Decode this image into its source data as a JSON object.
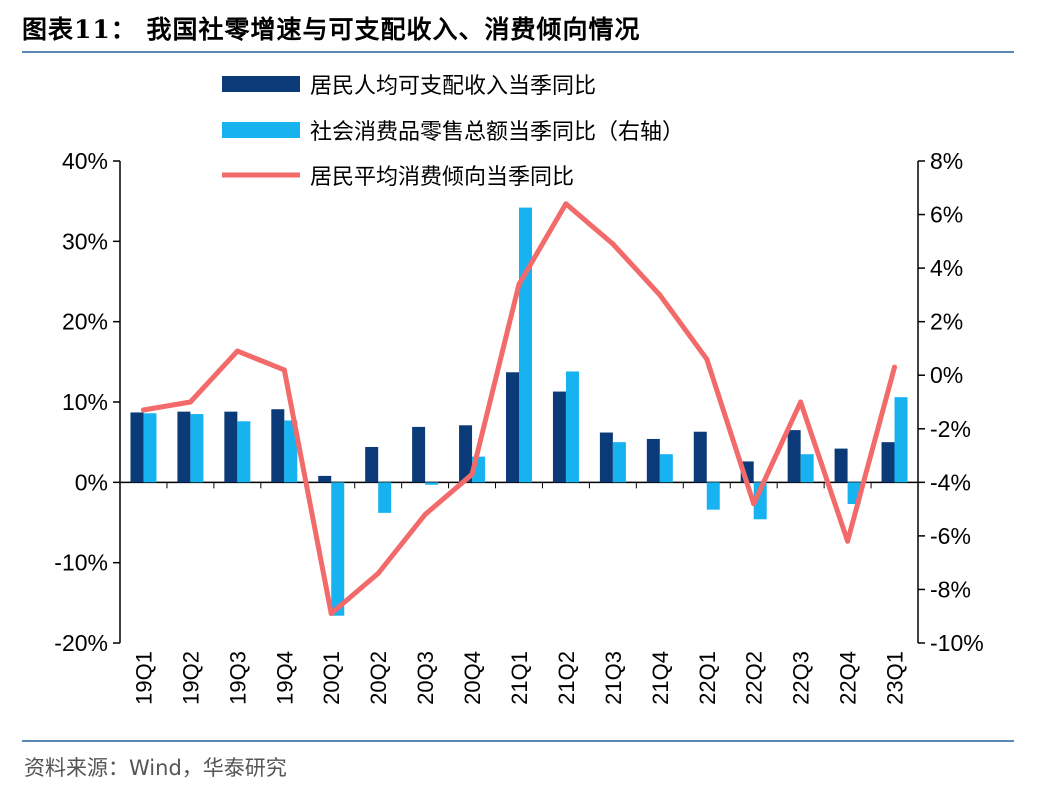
{
  "title": "图表11：  我国社零增速与可支配收入、消费倾向情况",
  "source": "资料来源：Wind，华泰研究",
  "colors": {
    "income": "#0b3a78",
    "retail": "#17b2f0",
    "propensity": "#f26a6a",
    "rule": "#5b87b5"
  },
  "chart_data": {
    "type": "bar+line",
    "categories": [
      "19Q1",
      "19Q2",
      "19Q3",
      "19Q4",
      "20Q1",
      "20Q2",
      "20Q3",
      "20Q4",
      "21Q1",
      "21Q2",
      "21Q3",
      "21Q4",
      "22Q1",
      "22Q2",
      "22Q3",
      "22Q4",
      "23Q1"
    ],
    "series": [
      {
        "name": "居民人均可支配收入当季同比",
        "type": "bar",
        "axis": "left",
        "values": [
          8.7,
          8.8,
          8.8,
          9.1,
          0.8,
          4.4,
          6.9,
          7.1,
          13.7,
          11.3,
          6.2,
          5.4,
          6.3,
          2.6,
          6.5,
          4.2,
          5.0
        ]
      },
      {
        "name": "社会消费品零售总额当季同比（右轴）",
        "type": "bar",
        "axis": "left",
        "values": [
          8.6,
          8.5,
          7.6,
          7.7,
          -16.6,
          -3.8,
          -0.3,
          3.2,
          34.2,
          13.8,
          5.0,
          3.5,
          -3.4,
          -4.6,
          3.5,
          -2.7,
          10.6
        ]
      },
      {
        "name": "居民平均消费倾向当季同比",
        "type": "line",
        "axis": "right",
        "values": [
          -1.3,
          -1.0,
          0.9,
          0.2,
          -8.9,
          -7.4,
          -5.2,
          -3.7,
          3.4,
          6.4,
          4.9,
          3.0,
          0.6,
          -4.8,
          -1.0,
          -6.2,
          0.3
        ]
      }
    ],
    "left_axis": {
      "min": -20,
      "max": 40,
      "step": 10,
      "ticks": [
        "40%",
        "30%",
        "20%",
        "10%",
        "0%",
        "-10%",
        "-20%"
      ]
    },
    "right_axis": {
      "min": -10,
      "max": 8,
      "step": 2,
      "ticks": [
        "8%",
        "6%",
        "4%",
        "2%",
        "0%",
        "-2%",
        "-4%",
        "-6%",
        "-8%",
        "-10%"
      ]
    },
    "legend_placement": "top-center"
  }
}
